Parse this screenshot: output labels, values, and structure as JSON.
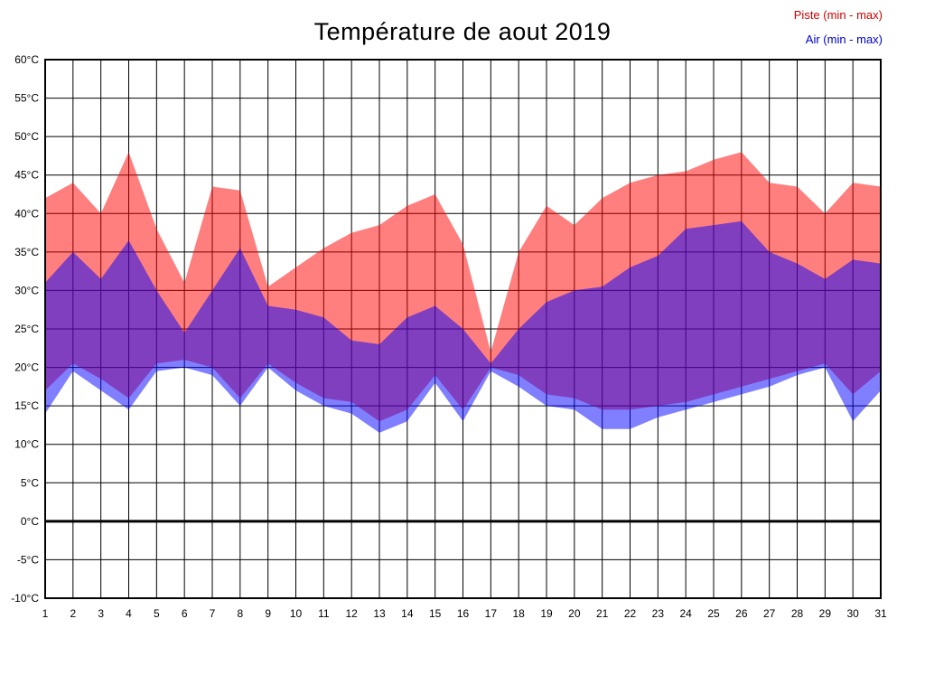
{
  "title": "Température de aout 2019",
  "legend": {
    "piste_label": "Piste (min - max)",
    "piste_color": "#cc0000",
    "air_label": "Air (min - max)",
    "air_color": "#0000cc"
  },
  "chart_data": {
    "type": "area",
    "title": "Température de aout 2019",
    "xlabel": "",
    "ylabel": "",
    "x": [
      1,
      2,
      3,
      4,
      5,
      6,
      7,
      8,
      9,
      10,
      11,
      12,
      13,
      14,
      15,
      16,
      17,
      18,
      19,
      20,
      21,
      22,
      23,
      24,
      25,
      26,
      27,
      28,
      29,
      30,
      31
    ],
    "ylim": [
      -10,
      60
    ],
    "ytick_step": 5,
    "ytick_suffix": "°C",
    "yticks": [
      {
        "value": 60,
        "label": "60°C"
      },
      {
        "value": 55,
        "label": "55°C"
      },
      {
        "value": 50,
        "label": "50°C"
      },
      {
        "value": 45,
        "label": "45°C"
      },
      {
        "value": 40,
        "label": "40°C"
      },
      {
        "value": 35,
        "label": "35°C"
      },
      {
        "value": 30,
        "label": "30°C"
      },
      {
        "value": 25,
        "label": "25°C"
      },
      {
        "value": 20,
        "label": "20°C"
      },
      {
        "value": 15,
        "label": "15°C"
      },
      {
        "value": 10,
        "label": "10°C"
      },
      {
        "value": 5,
        "label": "5°C"
      },
      {
        "value": 0,
        "label": "0°C"
      },
      {
        "value": -5,
        "label": "-5°C"
      },
      {
        "value": -10,
        "label": "-10°C"
      }
    ],
    "grid": true,
    "grid_color": "#000000",
    "border_color": "#000000",
    "zero_line": true,
    "zero_line_width": 3,
    "legend_position": "top-right",
    "series": [
      {
        "key": "piste",
        "name": "Piste (min - max)",
        "fill": "#ff0000",
        "fill_opacity": 0.5,
        "max": [
          42,
          44,
          40,
          48,
          38,
          31,
          43.5,
          43,
          30.5,
          33,
          35.5,
          37.5,
          38.5,
          41,
          42.5,
          36,
          22,
          35,
          41,
          38.5,
          42,
          44,
          45,
          45.5,
          47,
          48,
          44,
          43.5,
          40,
          44,
          43.5
        ],
        "min": [
          17,
          20.5,
          18.5,
          16,
          20.5,
          21,
          20,
          16,
          20.5,
          18,
          16,
          15.5,
          13,
          14.5,
          19,
          14.5,
          20,
          19,
          16.5,
          16,
          14.5,
          14.5,
          15,
          15.5,
          16.5,
          17.5,
          18.5,
          19.5,
          20.5,
          16.5,
          19.5
        ]
      },
      {
        "key": "air",
        "name": "Air (min - max)",
        "fill": "#0000ff",
        "fill_opacity": 0.5,
        "max": [
          31,
          35,
          31.5,
          36.5,
          30,
          24.5,
          30,
          35.5,
          28,
          27.5,
          26.5,
          23.5,
          23,
          26.5,
          28,
          25,
          20.5,
          25,
          28.5,
          30,
          30.5,
          33,
          34.5,
          38,
          38.5,
          39,
          35,
          33.5,
          31.5,
          34,
          33.5
        ],
        "min": [
          14,
          19.5,
          17,
          14.5,
          19.5,
          20,
          19,
          15,
          20,
          17,
          15,
          14,
          11.5,
          13,
          18,
          13,
          19.5,
          17.5,
          15,
          14.5,
          12,
          12,
          13.5,
          14.5,
          15.5,
          16.5,
          17.5,
          19,
          20,
          13,
          17
        ]
      }
    ]
  }
}
